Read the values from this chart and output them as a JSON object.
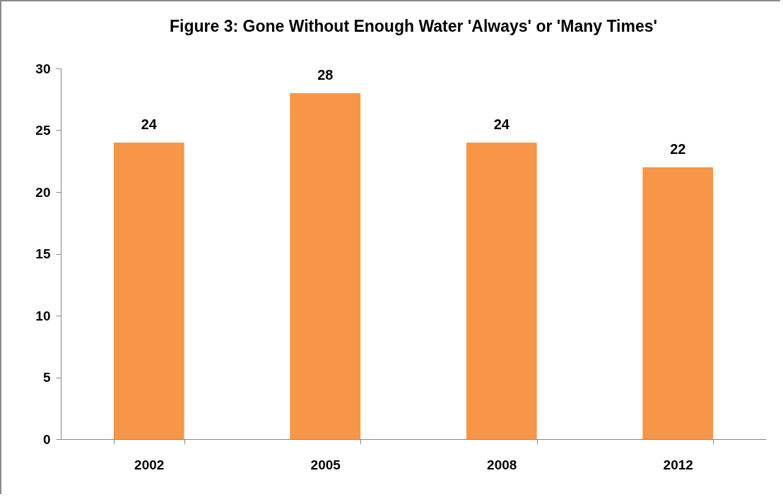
{
  "chart_data": {
    "type": "bar",
    "title": "Figure 3: Gone Without Enough Water 'Always' or 'Many Times'",
    "categories": [
      "2002",
      "2005",
      "2008",
      "2012"
    ],
    "values": [
      24,
      28,
      24,
      22
    ],
    "color": "#f79646",
    "ylim": [
      0,
      30
    ],
    "yticks": [
      0,
      5,
      10,
      15,
      20,
      25,
      30
    ],
    "data_labels": true
  }
}
